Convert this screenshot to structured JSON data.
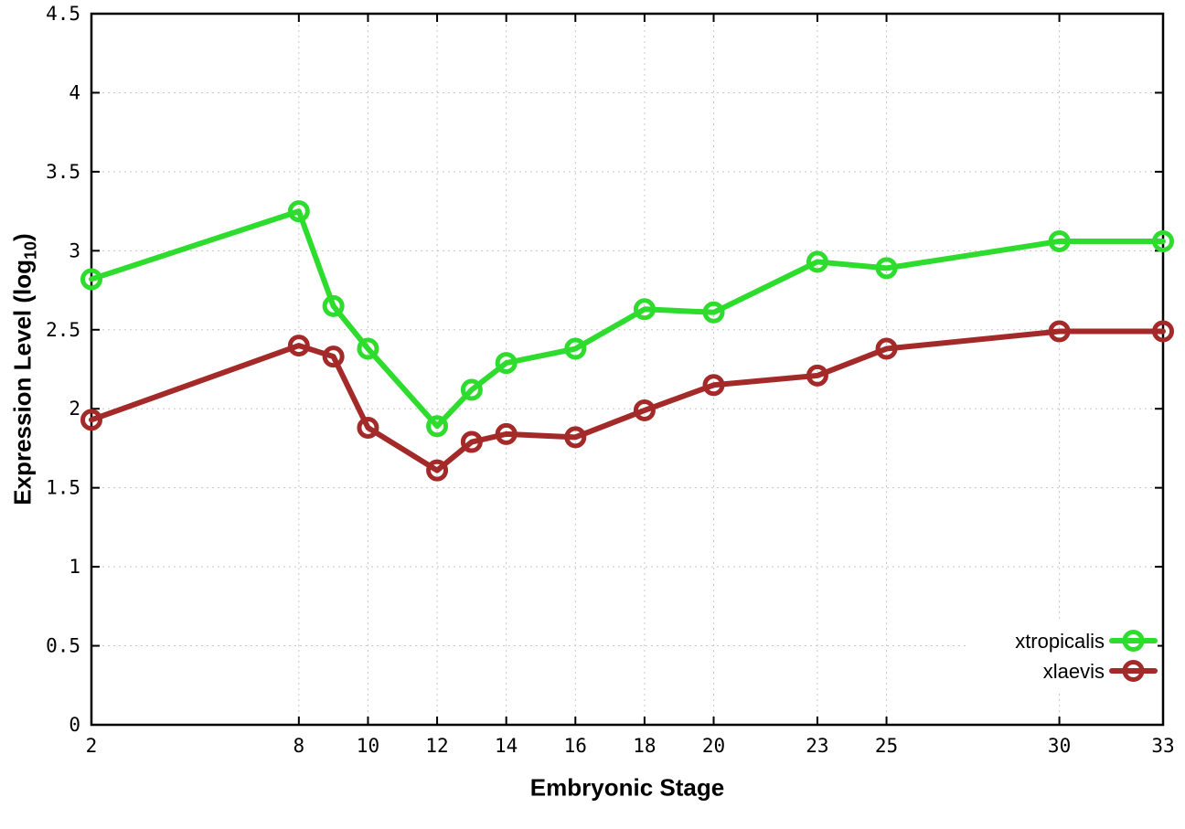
{
  "figure": {
    "xlabel": "Embryonic Stage",
    "ylabel": {
      "prefix": "Expression Level (log",
      "sub": "10",
      "suffix": ")"
    }
  },
  "chart_data": {
    "type": "line",
    "title": "",
    "xlabel": "Embryonic Stage",
    "ylabel": "Expression Level (log10)",
    "xlim": [
      2,
      33
    ],
    "ylim": [
      0,
      4.5
    ],
    "x_ticks": [
      2,
      8,
      10,
      12,
      14,
      16,
      18,
      20,
      23,
      25,
      30,
      33
    ],
    "y_ticks": [
      0,
      0.5,
      1,
      1.5,
      2,
      2.5,
      3,
      3.5,
      4,
      4.5
    ],
    "grid": true,
    "legend_position": "bottom-right",
    "marker": "open-circle",
    "x": [
      2,
      8,
      9,
      10,
      12,
      13,
      14,
      16,
      18,
      20,
      23,
      25,
      30,
      33
    ],
    "series": [
      {
        "name": "xtropicalis",
        "color": "#2edc2e",
        "values": [
          2.82,
          3.25,
          2.65,
          2.38,
          1.89,
          2.12,
          2.29,
          2.38,
          2.63,
          2.61,
          2.93,
          2.89,
          3.06,
          3.06
        ]
      },
      {
        "name": "xlaevis",
        "color": "#a42a2a",
        "values": [
          1.93,
          2.4,
          2.33,
          1.88,
          1.61,
          1.79,
          1.84,
          1.82,
          1.99,
          2.15,
          2.21,
          2.38,
          2.49,
          2.49
        ]
      }
    ],
    "style": {
      "grid_color": "#c8c8c8",
      "border_color": "#000000",
      "text_color": "#000000",
      "background": "#ffffff"
    }
  }
}
